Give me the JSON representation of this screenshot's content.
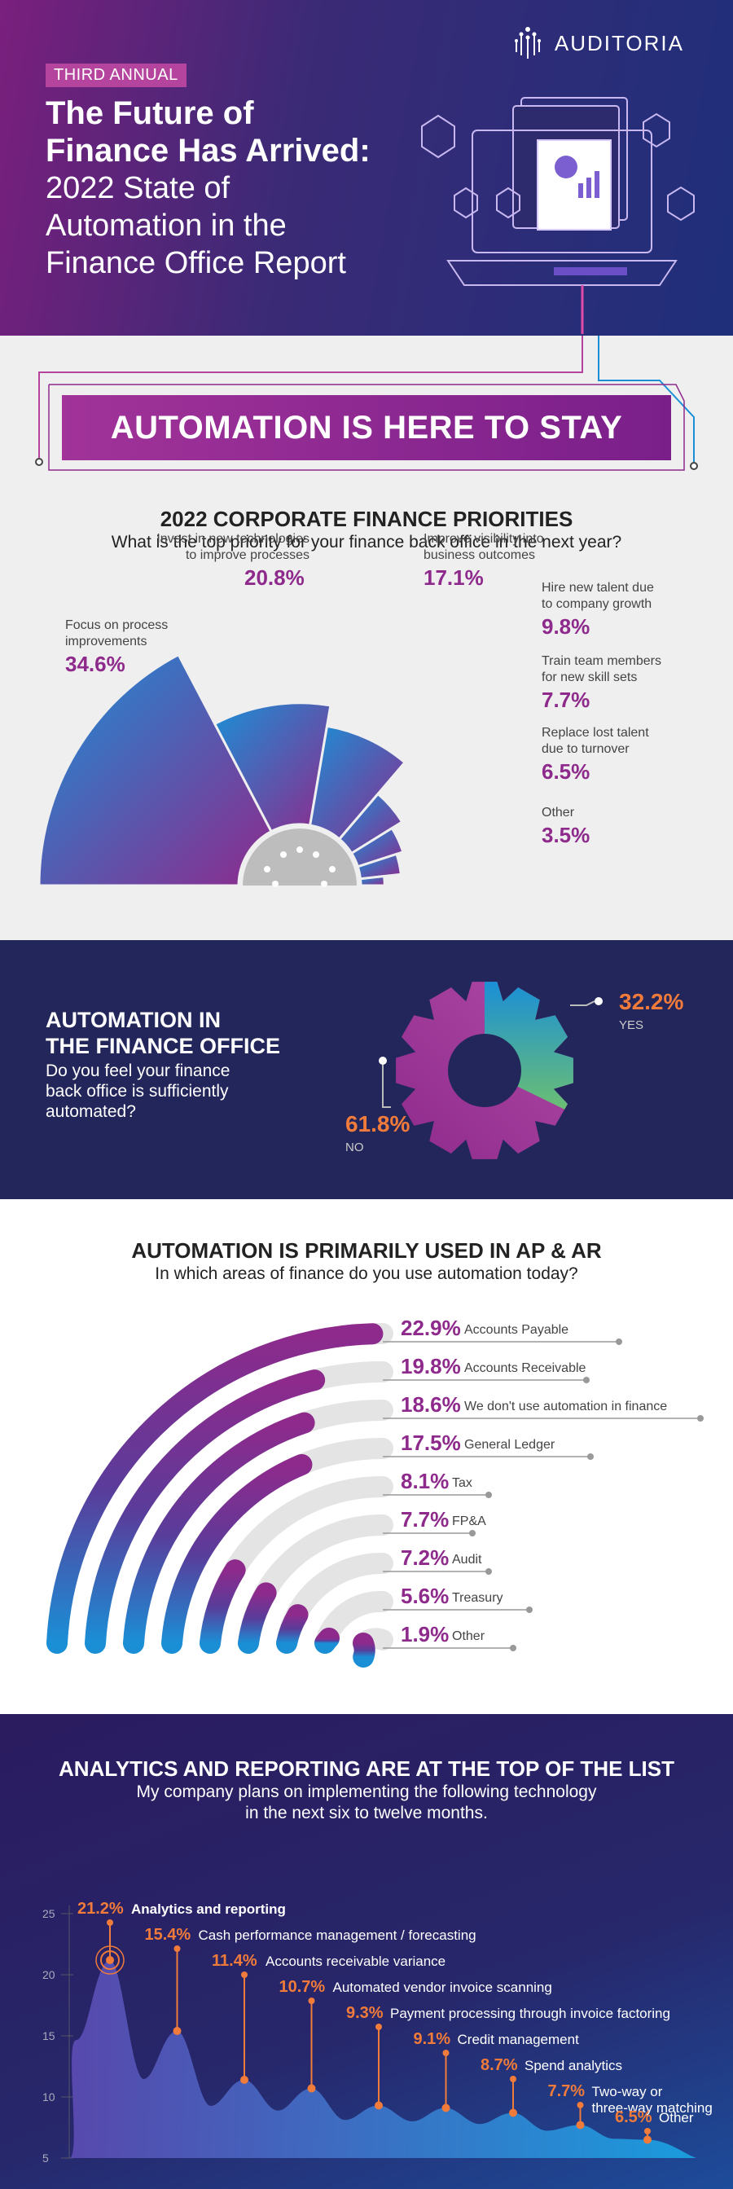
{
  "header": {
    "badge": "THIRD ANNUAL",
    "title_bold_1": "The Future of",
    "title_bold_2": "Finance Has Arrived:",
    "title_reg_1": "2022 State of",
    "title_reg_2": "Automation in the",
    "title_reg_3": "Finance Office Report",
    "logo": "AUDITORIA"
  },
  "priorities": {
    "banner": "AUTOMATION IS HERE TO STAY",
    "heading": "2022 CORPORATE FINANCE PRIORITIES",
    "question": "What is the top priority for your finance back office in the next year?"
  },
  "automation": {
    "heading_1": "AUTOMATION IN",
    "heading_2": "THE FINANCE OFFICE",
    "question_1": "Do you feel your finance",
    "question_2": "back office is sufficiently",
    "question_3": "automated?"
  },
  "apar": {
    "heading": "AUTOMATION IS PRIMARILY USED IN AP & AR",
    "question": "In which areas of finance do you use automation today?"
  },
  "analytics": {
    "heading": "ANALYTICS AND REPORTING ARE AT THE TOP OF THE LIST",
    "question_1": "My company plans on implementing the following technology",
    "question_2": "in the next six to twelve months."
  },
  "colors": {
    "purple": "#8e2a8c",
    "orange": "#f07b3a",
    "blue": "#1a8fd6",
    "magenta": "#b5449e"
  },
  "chart_data": [
    {
      "type": "pie",
      "title": "2022 CORPORATE FINANCE PRIORITIES",
      "series": [
        {
          "label_1": "Focus on process",
          "label_2": "improvements",
          "pct": "34.6%",
          "value": 34.6
        },
        {
          "label_1": "Invest in new technologies",
          "label_2": "to improve processes",
          "pct": "20.8%",
          "value": 20.8
        },
        {
          "label_1": "Improve visibility into",
          "label_2": "business outcomes",
          "pct": "17.1%",
          "value": 17.1
        },
        {
          "label_1": "Hire new talent due",
          "label_2": "to company growth",
          "pct": "9.8%",
          "value": 9.8
        },
        {
          "label_1": "Train team members",
          "label_2": "for new skill sets",
          "pct": "7.7%",
          "value": 7.7
        },
        {
          "label_1": "Replace lost talent",
          "label_2": "due to turnover",
          "pct": "6.5%",
          "value": 6.5
        },
        {
          "label_1": "Other",
          "label_2": "",
          "pct": "3.5%",
          "value": 3.5
        }
      ]
    },
    {
      "type": "pie",
      "title": "AUTOMATION IN THE FINANCE OFFICE",
      "series": [
        {
          "label": "YES",
          "pct": "32.2%",
          "value": 32.2
        },
        {
          "label": "NO",
          "pct": "61.8%",
          "value": 61.8
        }
      ]
    },
    {
      "type": "bar",
      "title": "AUTOMATION IS PRIMARILY USED IN AP & AR",
      "series": [
        {
          "label": "Accounts Payable",
          "pct": "22.9%",
          "value": 22.9
        },
        {
          "label": "Accounts Receivable",
          "pct": "19.8%",
          "value": 19.8
        },
        {
          "label": "We don't use automation in finance",
          "pct": "18.6%",
          "value": 18.6
        },
        {
          "label": "General Ledger",
          "pct": "17.5%",
          "value": 17.5
        },
        {
          "label": "Tax",
          "pct": "8.1%",
          "value": 8.1
        },
        {
          "label": "FP&A",
          "pct": "7.7%",
          "value": 7.7
        },
        {
          "label": "Audit",
          "pct": "7.2%",
          "value": 7.2
        },
        {
          "label": "Treasury",
          "pct": "5.6%",
          "value": 5.6
        },
        {
          "label": "Other",
          "pct": "1.9%",
          "value": 1.9
        }
      ]
    },
    {
      "type": "area",
      "title": "ANALYTICS AND REPORTING ARE AT THE TOP OF THE LIST",
      "yticks": [
        "25",
        "20",
        "15",
        "10",
        "5"
      ],
      "ylim": [
        5,
        25
      ],
      "series": [
        {
          "label_1": "Analytics and reporting",
          "label_2": "",
          "pct": "21.2%",
          "value": 21.2
        },
        {
          "label_1": "Cash performance management / forecasting",
          "label_2": "",
          "pct": "15.4%",
          "value": 15.4
        },
        {
          "label_1": "Accounts receivable variance",
          "label_2": "",
          "pct": "11.4%",
          "value": 11.4
        },
        {
          "label_1": "Automated vendor invoice scanning",
          "label_2": "",
          "pct": "10.7%",
          "value": 10.7
        },
        {
          "label_1": "Payment processing through invoice factoring",
          "label_2": "",
          "pct": "9.3%",
          "value": 9.3
        },
        {
          "label_1": "Credit management",
          "label_2": "",
          "pct": "9.1%",
          "value": 9.1
        },
        {
          "label_1": "Spend analytics",
          "label_2": "",
          "pct": "8.7%",
          "value": 8.7
        },
        {
          "label_1": "Two-way or",
          "label_2": "three-way matching",
          "pct": "7.7%",
          "value": 7.7
        },
        {
          "label_1": "Other",
          "label_2": "",
          "pct": "6.5%",
          "value": 6.5
        }
      ]
    }
  ]
}
